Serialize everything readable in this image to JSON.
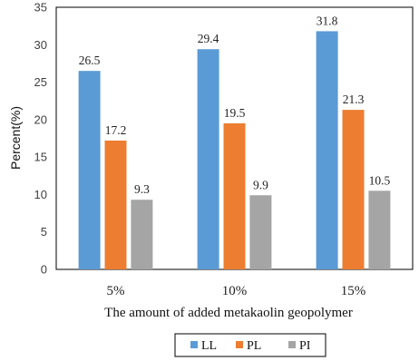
{
  "chart_data": {
    "type": "bar",
    "categories": [
      "5%",
      "10%",
      "15%"
    ],
    "series": [
      {
        "name": "LL",
        "values": [
          26.5,
          29.4,
          31.8
        ],
        "labels": [
          "26.5",
          "29.4",
          "31.8"
        ],
        "color": "#5B9BD5"
      },
      {
        "name": "PL",
        "values": [
          17.2,
          19.5,
          21.3
        ],
        "labels": [
          "17.2",
          "19.5",
          "21.3"
        ],
        "color": "#ED7D31"
      },
      {
        "name": "PI",
        "values": [
          9.3,
          9.9,
          10.5
        ],
        "labels": [
          "9.3",
          "9.9",
          "10.5"
        ],
        "color": "#A5A5A5"
      }
    ],
    "xlabel": "The amount of added metakaolin geopolymer",
    "ylabel": "Percent(%)",
    "ylim": [
      0,
      35
    ],
    "yticks": [
      "0",
      "5",
      "10",
      "15",
      "20",
      "25",
      "30",
      "35"
    ],
    "grid": false,
    "legend_position": "bottom"
  }
}
